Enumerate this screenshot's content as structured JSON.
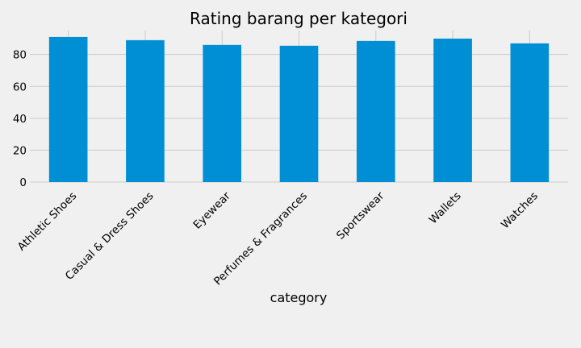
{
  "chart_data": {
    "type": "bar",
    "title": "Rating barang per kategori",
    "xlabel": "category",
    "ylabel": "",
    "categories": [
      "Athletic Shoes",
      "Casual & Dress Shoes",
      "Eyewear",
      "Perfumes & Fragrances",
      "Sportswear",
      "Wallets",
      "Watches"
    ],
    "values": [
      91,
      89,
      86,
      85.5,
      88.5,
      90,
      87
    ],
    "ylim": [
      0,
      95
    ],
    "yticks": [
      0,
      20,
      40,
      60,
      80
    ],
    "grid": true,
    "legend": "none",
    "colors": {
      "bar": "#008fd5",
      "background": "#f0f0f0",
      "grid": "#cbcbcb"
    }
  }
}
